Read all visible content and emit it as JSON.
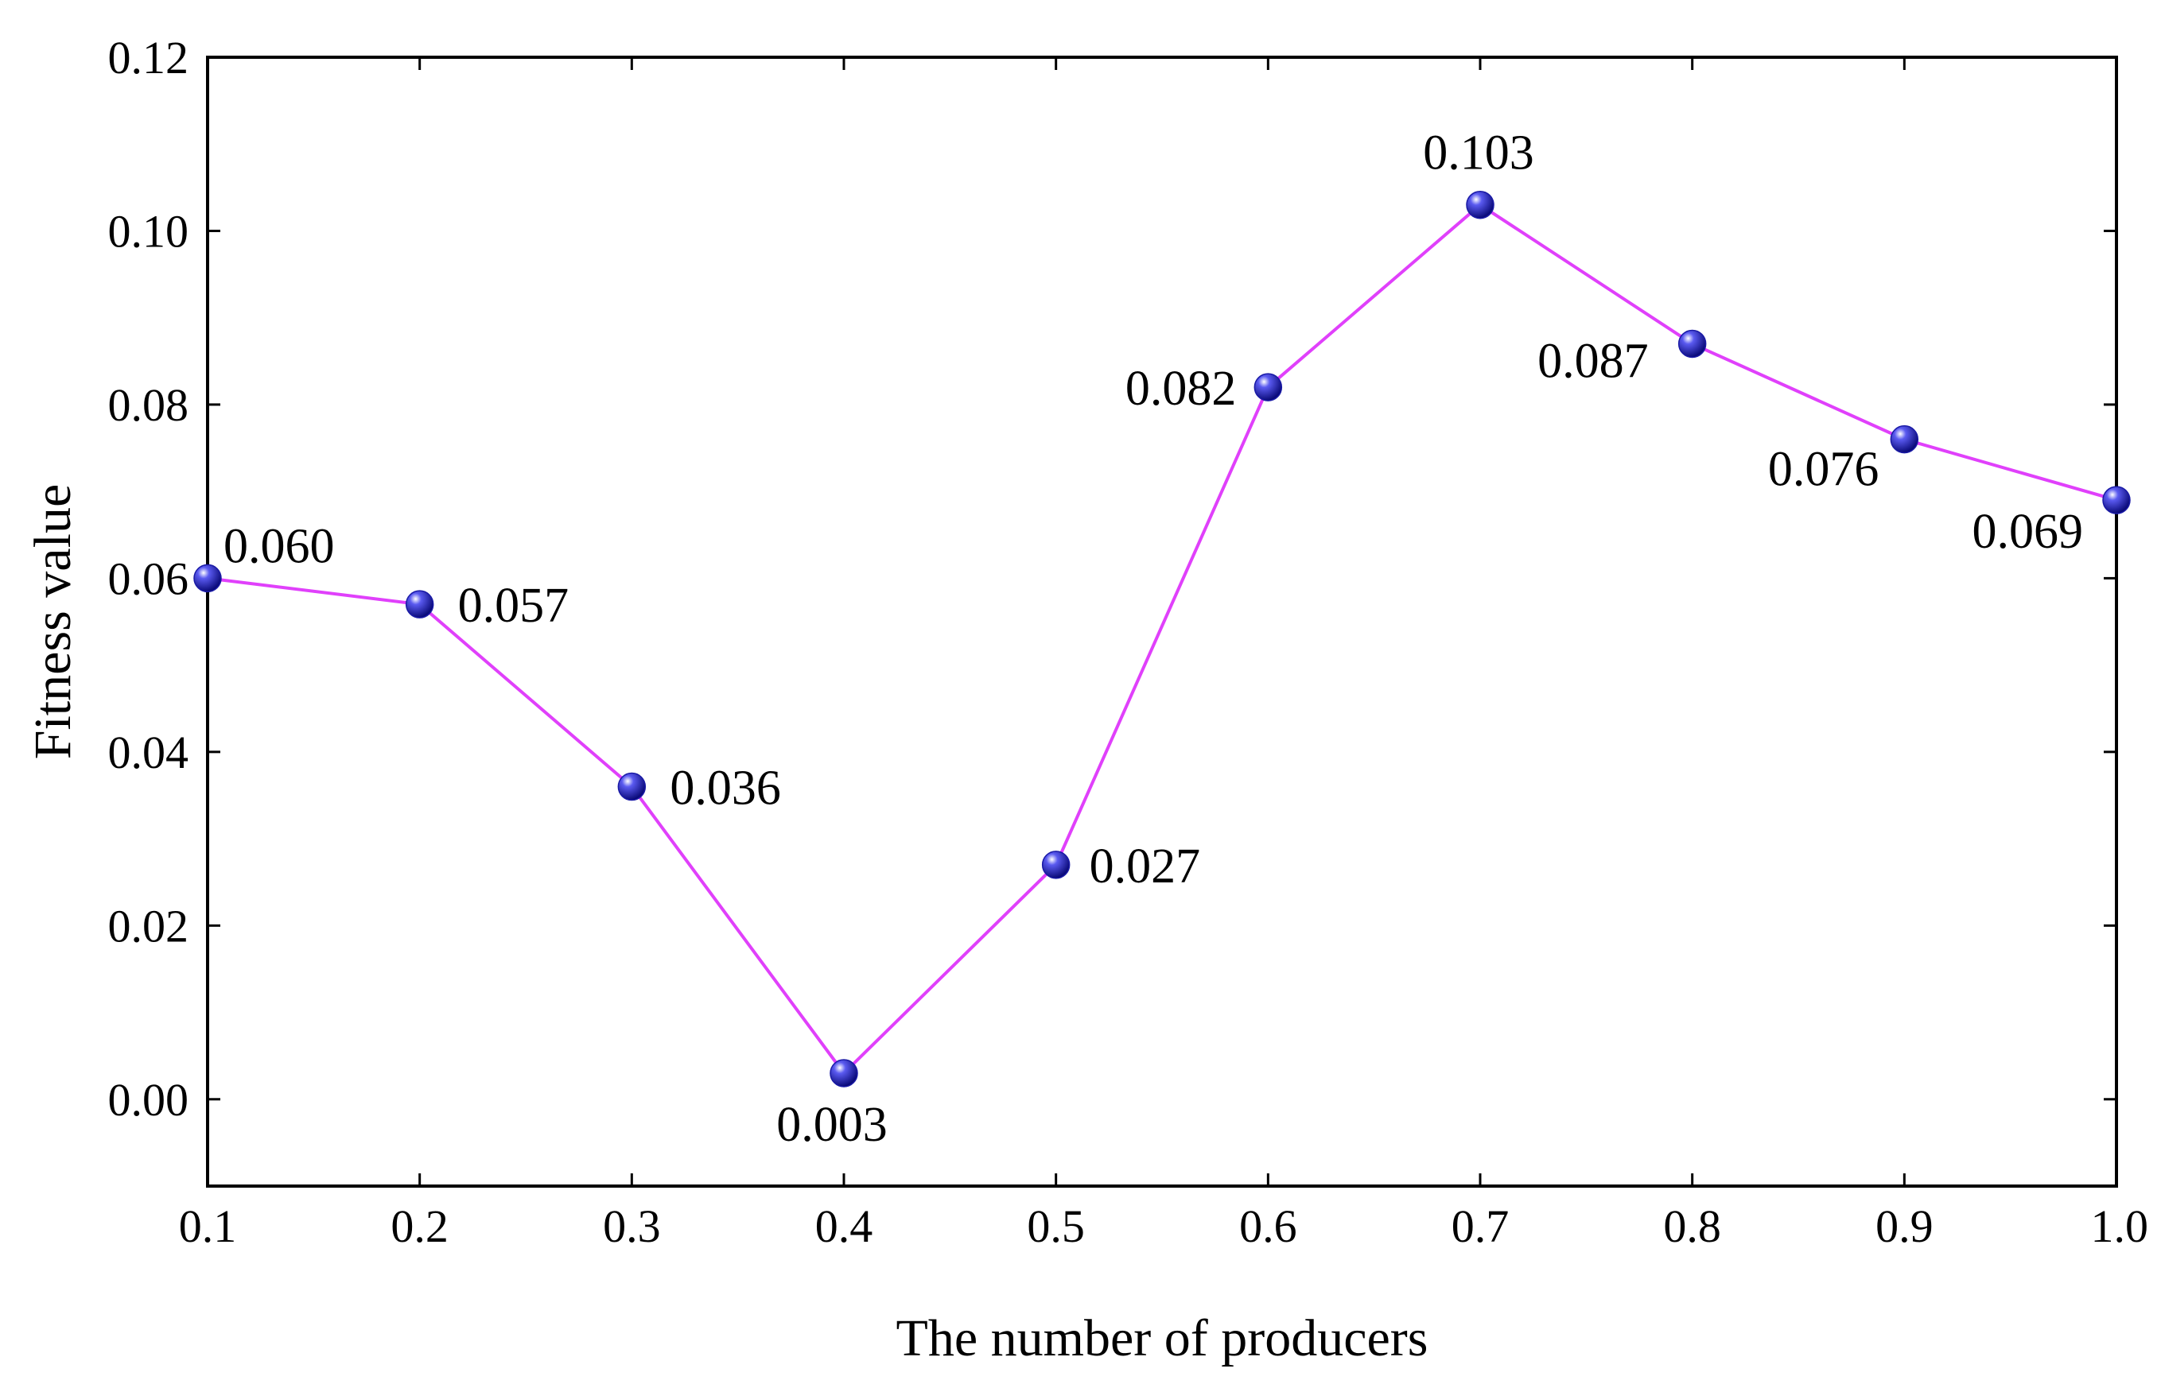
{
  "chart_data": {
    "type": "line",
    "title": "",
    "xlabel": "The number of producers",
    "ylabel": "Fitness value",
    "xlim": [
      0.1,
      1.0
    ],
    "ylim": [
      -0.01,
      0.12
    ],
    "xticks": [
      "0.1",
      "0.2",
      "0.3",
      "0.4",
      "0.5",
      "0.6",
      "0.7",
      "0.8",
      "0.9",
      "1.0"
    ],
    "yticks": [
      "0.00",
      "0.02",
      "0.04",
      "0.06",
      "0.08",
      "0.10",
      "0.12"
    ],
    "grid": false,
    "series": [
      {
        "name": "Fitness value",
        "x": [
          0.1,
          0.2,
          0.3,
          0.4,
          0.5,
          0.6,
          0.7,
          0.8,
          0.9,
          1.0
        ],
        "y": [
          0.06,
          0.057,
          0.036,
          0.003,
          0.027,
          0.082,
          0.103,
          0.087,
          0.076,
          0.069
        ],
        "labels": [
          "0.060",
          "0.057",
          "0.036",
          "0.003",
          "0.027",
          "0.082",
          "0.103",
          "0.087",
          "0.076",
          "0.069"
        ],
        "line_color": "#e040fb",
        "marker_color": "#1a1aa6"
      }
    ]
  }
}
